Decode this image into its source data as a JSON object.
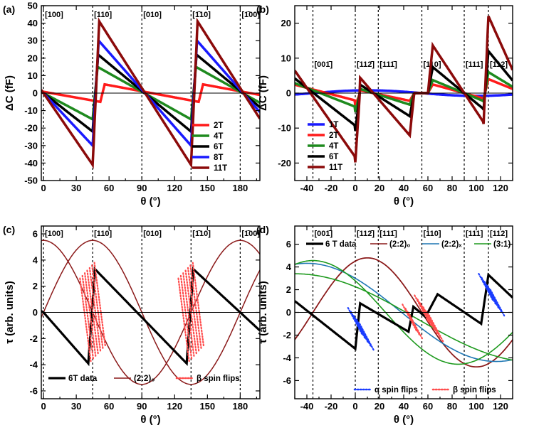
{
  "chart_data": [
    {
      "panel": "(a)",
      "type": "line",
      "xlabel": "θ (°)",
      "ylabel": "ΔC (fF)",
      "xlim": [
        -2,
        198
      ],
      "ylim": [
        -50,
        50
      ],
      "xticks": [
        0,
        30,
        60,
        90,
        120,
        150,
        180
      ],
      "yticks": [
        -50,
        -40,
        -30,
        -20,
        -10,
        0,
        10,
        20,
        30,
        40,
        50
      ],
      "legend_position": "bottom-right",
      "annotations": [
        {
          "text": "[100]",
          "x": 0
        },
        {
          "text": "[110]",
          "x": 45
        },
        {
          "text": "[010]",
          "x": 90
        },
        {
          "text": "[1̄10]",
          "x": 135
        },
        {
          "text": "[1̄00]",
          "x": 180
        }
      ],
      "series": [
        {
          "name": "2T",
          "color": "#ff1a1a",
          "amplitude": 5,
          "jump_at": [
            52,
            142
          ]
        },
        {
          "name": "4T",
          "color": "#1e8a1e",
          "amplitude": 15,
          "jump_at": [
            45,
            135
          ]
        },
        {
          "name": "6T",
          "color": "#000000",
          "amplitude": 22,
          "jump_at": [
            45,
            135
          ]
        },
        {
          "name": "8T",
          "color": "#1a1aff",
          "amplitude": 30,
          "jump_at": [
            45,
            135
          ]
        },
        {
          "name": "11T",
          "color": "#8b0a0a",
          "amplitude": 41,
          "jump_at": [
            45,
            135
          ]
        }
      ]
    },
    {
      "panel": "(b)",
      "type": "line",
      "xlabel": "θ (°)",
      "ylabel": "ΔC (fF)",
      "xlim": [
        -50,
        130
      ],
      "ylim": [
        -25,
        25
      ],
      "xticks": [
        -40,
        -20,
        0,
        20,
        40,
        60,
        80,
        100,
        120
      ],
      "yticks": [
        -20,
        -10,
        0,
        10,
        20
      ],
      "legend_position": "bottom-left",
      "annotations": [
        {
          "text": "[001̄]",
          "x": -35
        },
        {
          "text": "[112̄]",
          "x": 0
        },
        {
          "text": "[111̄]",
          "x": 19
        },
        {
          "text": "[110]",
          "x": 55
        },
        {
          "text": "[111]",
          "x": 90
        },
        {
          "text": "[112]",
          "x": 110
        }
      ],
      "series": [
        {
          "name": "1T",
          "color": "#1a1aff",
          "amplitude": 1
        },
        {
          "name": "2T",
          "color": "#ff1a1a",
          "amplitude": 4
        },
        {
          "name": "4T",
          "color": "#1e8a1e",
          "amplitude": 6
        },
        {
          "name": "6T",
          "color": "#000000",
          "amplitude": 12
        },
        {
          "name": "11T",
          "color": "#8b0a0a",
          "amplitude": 22
        }
      ]
    },
    {
      "panel": "(c)",
      "type": "line",
      "xlabel": "θ (°)",
      "ylabel": "τ (arb. units)",
      "xlim": [
        -2,
        198
      ],
      "ylim": [
        -6.6,
        6.6
      ],
      "xticks": [
        0,
        30,
        60,
        90,
        120,
        150,
        180
      ],
      "yticks": [
        -6,
        -4,
        -2,
        0,
        2,
        4,
        6
      ],
      "legend_position": "bottom",
      "annotations": [
        {
          "text": "[100]",
          "x": 0
        },
        {
          "text": "[110]",
          "x": 45
        },
        {
          "text": "[010]",
          "x": 90
        },
        {
          "text": "[1̄10]",
          "x": 135
        },
        {
          "text": "[1̄00]",
          "x": 180
        }
      ],
      "series": [
        {
          "name": "6T data",
          "color": "#000000",
          "amplitude": 3.9
        },
        {
          "name": "(2:2)₀",
          "color": "#8b1a1a",
          "amplitude": 5.5
        },
        {
          "name": "β spin flips",
          "color": "#ff4d4d",
          "style": "dotted"
        }
      ]
    },
    {
      "panel": "(d)",
      "type": "line",
      "xlabel": "θ (°)",
      "ylabel": "τ (arb. units)",
      "xlim": [
        -50,
        130
      ],
      "ylim": [
        -7.6,
        7.6
      ],
      "xticks": [
        -40,
        -20,
        0,
        20,
        40,
        60,
        80,
        100,
        120
      ],
      "yticks": [
        -6,
        -4,
        -2,
        0,
        2,
        4,
        6
      ],
      "legend_position": "top and bottom",
      "annotations": [
        {
          "text": "[001̄]",
          "x": -35
        },
        {
          "text": "[112̄]",
          "x": 0
        },
        {
          "text": "[111̄]",
          "x": 19
        },
        {
          "text": "[110]",
          "x": 55
        },
        {
          "text": "[111]",
          "x": 90
        },
        {
          "text": "[112]",
          "x": 110
        }
      ],
      "series": [
        {
          "name": "6 T data",
          "color": "#000000"
        },
        {
          "name": "(2:2)₀",
          "color": "#8b1a1a",
          "amplitude": 4.8
        },
        {
          "name": "(2:2)ₓ",
          "color": "#1f77b4",
          "amplitude": 4.8
        },
        {
          "name": "(3:1)",
          "color": "#1e9a1e",
          "amplitude": 4.8
        },
        {
          "name": "α spin flips",
          "color": "#1a3cff",
          "style": "dotted"
        },
        {
          "name": "β spin flips",
          "color": "#ff4d4d",
          "style": "dotted"
        }
      ]
    }
  ]
}
